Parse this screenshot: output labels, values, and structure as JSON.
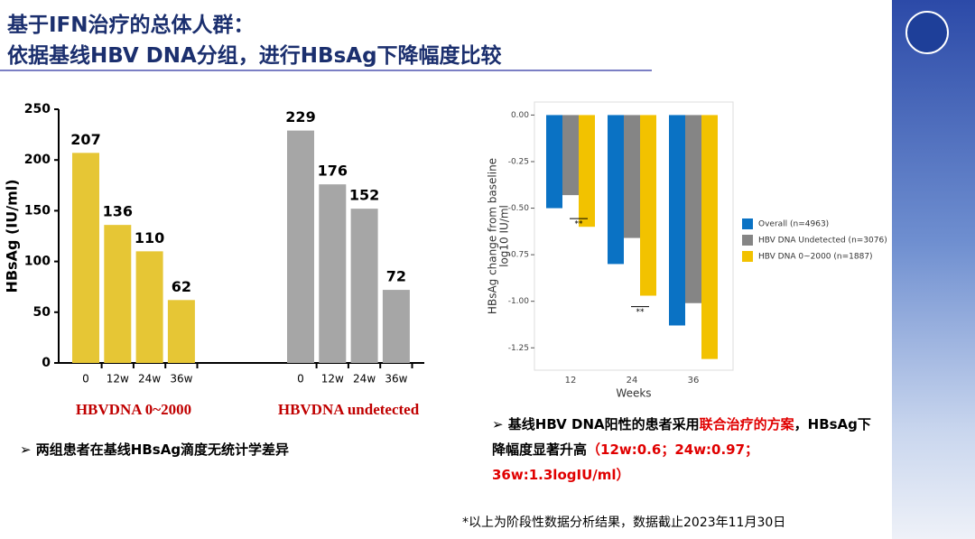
{
  "title": [
    "基于IFN治疗的总体人群：",
    "依据基线HBV DNA分组，进行HBsAg下降幅度比较"
  ],
  "chart_data": [
    {
      "type": "bar",
      "ylabel": "HBsAg (IU/ml)",
      "ylim": [
        0,
        250
      ],
      "yticks": [
        0,
        50,
        100,
        150,
        200,
        250
      ],
      "groups": [
        {
          "name": "HBVDNA 0~2000",
          "color": "#e6c635",
          "categories": [
            "0",
            "12w",
            "24w",
            "36w"
          ],
          "values": [
            207,
            136,
            110,
            62
          ]
        },
        {
          "name": "HBVDNA undetected",
          "color": "#a6a6a6",
          "categories": [
            "0",
            "12w",
            "24w",
            "36w"
          ],
          "values": [
            229,
            176,
            152,
            72
          ]
        }
      ]
    },
    {
      "type": "grouped-bar",
      "xlabel": "Weeks",
      "ylabel": [
        "HBsAg change from baseline",
        "log10 IU/ml"
      ],
      "categories": [
        "12",
        "24",
        "36"
      ],
      "ylim": [
        -1.37,
        0.07
      ],
      "yticks": [
        {
          "value": 0,
          "label": "0.00"
        },
        {
          "value": -0.25,
          "label": "-0.25"
        },
        {
          "value": -0.5,
          "label": "-0.50"
        },
        {
          "value": -0.75,
          "label": "-0.75"
        },
        {
          "value": -1,
          "label": "-1.00"
        },
        {
          "value": -1.25,
          "label": "-1.25"
        }
      ],
      "series": [
        {
          "name": "Overall (n=4963)",
          "color": "#0a72c4",
          "values": [
            -0.5,
            -0.8,
            -1.13
          ]
        },
        {
          "name": "HBV DNA Undetected (n=3076)",
          "color": "#858585",
          "values": [
            -0.43,
            -0.66,
            -1.01
          ]
        },
        {
          "name": "HBV DNA 0~2000 (n=1887)",
          "color": "#f2c200",
          "values": [
            -0.6,
            -0.97,
            -1.31
          ]
        }
      ],
      "annotations": [
        "**",
        "**"
      ]
    }
  ],
  "bullets": [
    {
      "parts": [
        {
          "text": "两组患者在基线HBsAg滴度无统计学差异",
          "color": "#000000"
        }
      ]
    },
    {
      "parts": [
        {
          "text": "基线HBV DNA阳性的患者采用",
          "color": "#000000"
        },
        {
          "text": "联合治疗的方案",
          "color": "#e00000"
        },
        {
          "text": "，HBsAg下降幅度显著升高",
          "color": "#000000"
        },
        {
          "text": "（12w:0.6；24w:0.97；36w:1.3logIU/ml）",
          "color": "#e00000"
        }
      ]
    }
  ],
  "footnote": "*以上为阶段性数据分析结果，数据截止2023年11月30日"
}
